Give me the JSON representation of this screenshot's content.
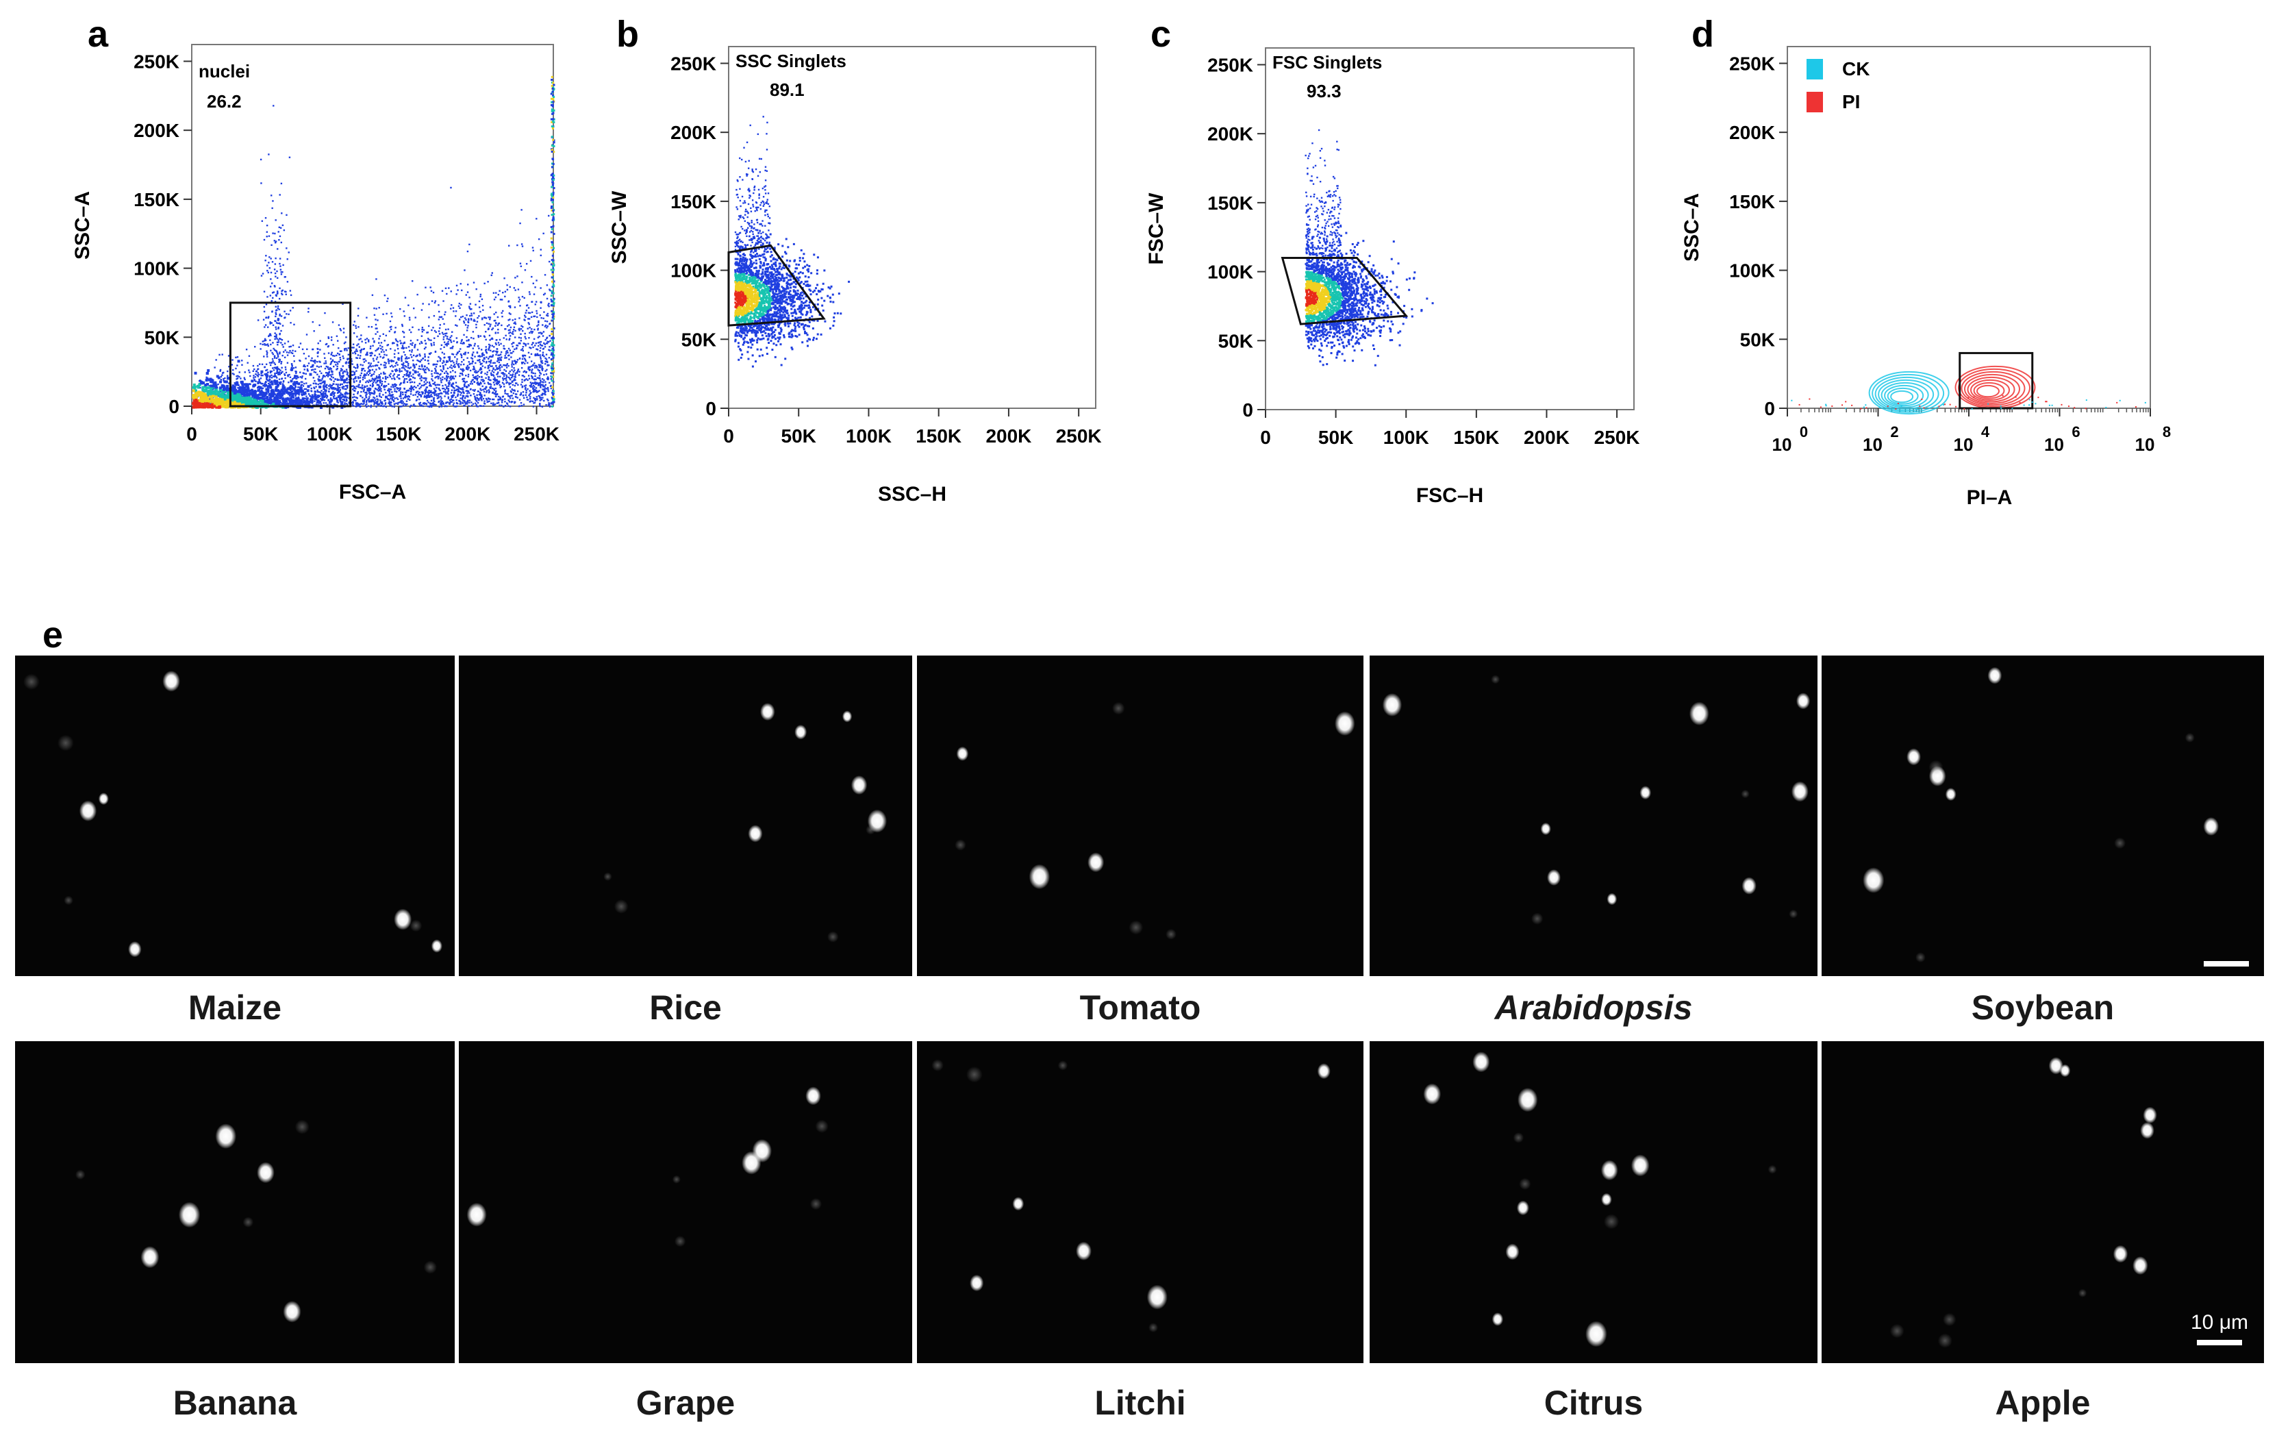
{
  "panel_letters": [
    "a",
    "b",
    "c",
    "d",
    "e"
  ],
  "chart_data": [
    {
      "id": "a",
      "type": "scatter",
      "title": "",
      "xlabel": "FSC–A",
      "ylabel": "SSC–A",
      "xlim": [
        0,
        262144
      ],
      "ylim": [
        0,
        262144
      ],
      "xticks": [
        "0",
        "50K",
        "100K",
        "150K",
        "200K",
        "250K"
      ],
      "yticks": [
        "0",
        "50K",
        "100K",
        "150K",
        "200K",
        "250K"
      ],
      "gate": {
        "name": "nuclei",
        "percent": "26.2",
        "shape": "rectangle",
        "x_range": [
          28000,
          115000
        ],
        "y_range": [
          0,
          75000
        ]
      },
      "density": "pseudocolor, dense near origin, spreading to FSC 262K"
    },
    {
      "id": "b",
      "type": "scatter",
      "xlabel": "SSC–H",
      "ylabel": "SSC–W",
      "xlim": [
        0,
        262144
      ],
      "ylim": [
        0,
        262144
      ],
      "xticks": [
        "0",
        "50K",
        "100K",
        "150K",
        "200K",
        "250K"
      ],
      "yticks": [
        "0",
        "50K",
        "100K",
        "150K",
        "200K",
        "250K"
      ],
      "gate": {
        "name": "SSC Singlets",
        "percent": "89.1",
        "shape": "polygon",
        "vertices": [
          [
            0,
            113000
          ],
          [
            30000,
            118000
          ],
          [
            68000,
            65000
          ],
          [
            0,
            60000
          ]
        ]
      }
    },
    {
      "id": "c",
      "type": "scatter",
      "xlabel": "FSC–H",
      "ylabel": "FSC–W",
      "xlim": [
        0,
        262144
      ],
      "ylim": [
        0,
        262144
      ],
      "xticks": [
        "0",
        "50K",
        "100K",
        "150K",
        "200K",
        "250K"
      ],
      "yticks": [
        "0",
        "50K",
        "100K",
        "150K",
        "200K",
        "250K"
      ],
      "gate": {
        "name": "FSC Singlets",
        "percent": "93.3",
        "shape": "polygon",
        "vertices": [
          [
            12000,
            110000
          ],
          [
            65000,
            110000
          ],
          [
            100000,
            68000
          ],
          [
            25000,
            62000
          ]
        ]
      }
    },
    {
      "id": "d",
      "type": "scatter",
      "xlabel": "PI–A",
      "ylabel": "SSC–A",
      "xscale": "log",
      "xlim": [
        0,
        8
      ],
      "ylim": [
        0,
        262144
      ],
      "xtick_bases": [
        "10",
        "10",
        "10",
        "10",
        "10"
      ],
      "xtick_exponents": [
        "0",
        "2",
        "4",
        "6",
        "8"
      ],
      "yticks": [
        "0",
        "50K",
        "100K",
        "150K",
        "200K",
        "250K"
      ],
      "legend": [
        {
          "label": "CK",
          "color": "#1ec8e8"
        },
        {
          "label": "PI",
          "color": "#ee3333"
        }
      ],
      "series": [
        {
          "name": "CK",
          "kind": "contour",
          "center_log10_x": 2.5,
          "center_y": 8000
        },
        {
          "name": "PI",
          "kind": "contour",
          "center_log10_x": 4.4,
          "center_y": 12000
        }
      ],
      "gate": {
        "shape": "rectangle",
        "x_range": [
          3.8,
          5.4
        ],
        "y_range": [
          0,
          40000
        ]
      }
    }
  ],
  "micrographs": {
    "panel": "e",
    "scale_bar": "10 μm",
    "rows": [
      [
        {
          "label": "Maize",
          "italic": false
        },
        {
          "label": "Rice",
          "italic": false
        },
        {
          "label": "Tomato",
          "italic": false
        },
        {
          "label": "Arabidopsis",
          "italic": true
        },
        {
          "label": "Soybean",
          "italic": false
        }
      ],
      [
        {
          "label": "Banana",
          "italic": false
        },
        {
          "label": "Grape",
          "italic": false
        },
        {
          "label": "Litchi",
          "italic": false
        },
        {
          "label": "Citrus",
          "italic": false
        },
        {
          "label": "Apple",
          "italic": false
        }
      ]
    ]
  },
  "colors": {
    "scatter_low": "#1f3fe0",
    "scatter_mid": "#18c4b0",
    "scatter_high": "#f0d020",
    "scatter_peak": "#e82a1a",
    "ck": "#1ec8e8",
    "pi": "#ee3333"
  }
}
